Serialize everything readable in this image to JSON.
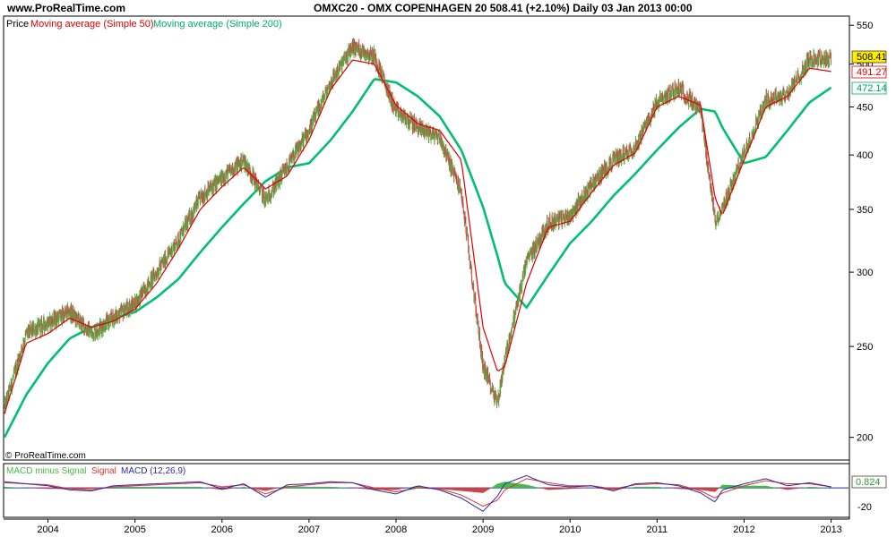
{
  "header": {
    "site": "www.ProRealTime.com",
    "title": "OMXC20 - OMX COPENHAGEN 20    508.41 (+2.10%)    Daily  03 Jan 2013 00:00"
  },
  "legend": {
    "price": "Price",
    "ma50": "Moving average (Simple 50)",
    "ma200": "Moving average (Simple 200)",
    "macd_hist": "MACD minus Signal",
    "macd_signal": "Signal",
    "macd_line": "MACD (12,26,9)"
  },
  "watermark": "© ProRealTime.com",
  "colors": {
    "price": "#44bb44",
    "price_alt": "#cc4444",
    "ma50": "#dd0000",
    "ma200": "#00c070",
    "macd_line": "#2a2aa0",
    "signal": "#dd3333",
    "last_price_bg": "#ffee00"
  },
  "price_labels": {
    "last": "508.41",
    "ma50": "491.27",
    "ma200": "472.14"
  },
  "macd_labels": {
    "last": "0.824",
    "tick_neg20": "-20"
  },
  "chart_data": [
    {
      "type": "line",
      "title": "OMXC20 - OMX COPENHAGEN 20",
      "y_ticks": [
        "550",
        "500",
        "450",
        "400",
        "350",
        "300",
        "250",
        "200"
      ],
      "x_ticks": [
        "2004",
        "2005",
        "2006",
        "2007",
        "2008",
        "2009",
        "2010",
        "2011",
        "2012",
        "2013"
      ],
      "ylim": [
        190,
        560
      ],
      "y_scale": "log",
      "series": [
        {
          "name": "Price",
          "x": [
            "2003-07",
            "2003-10",
            "2004-01",
            "2004-04",
            "2004-07",
            "2004-10",
            "2005-01",
            "2005-04",
            "2005-07",
            "2005-10",
            "2006-01",
            "2006-04",
            "2006-07",
            "2006-10",
            "2007-01",
            "2007-04",
            "2007-07",
            "2007-10",
            "2008-01",
            "2008-04",
            "2008-07",
            "2008-10",
            "2009-01",
            "2009-03",
            "2009-04",
            "2009-07",
            "2009-10",
            "2010-01",
            "2010-04",
            "2010-07",
            "2010-10",
            "2011-01",
            "2011-04",
            "2011-07",
            "2011-09",
            "2011-10",
            "2012-01",
            "2012-04",
            "2012-07",
            "2012-10",
            "2013-01"
          ],
          "values": [
            215,
            258,
            265,
            272,
            258,
            268,
            278,
            300,
            325,
            360,
            378,
            395,
            358,
            388,
            425,
            478,
            522,
            510,
            445,
            428,
            418,
            365,
            238,
            218,
            242,
            308,
            338,
            345,
            372,
            395,
            408,
            455,
            472,
            445,
            340,
            350,
            402,
            458,
            465,
            505,
            508
          ]
        },
        {
          "name": "Moving average (Simple 50)",
          "x": [
            "2003-07",
            "2003-10",
            "2004-01",
            "2004-04",
            "2004-07",
            "2004-10",
            "2005-01",
            "2005-04",
            "2005-07",
            "2005-10",
            "2006-01",
            "2006-04",
            "2006-07",
            "2006-10",
            "2007-01",
            "2007-04",
            "2007-07",
            "2007-10",
            "2008-01",
            "2008-04",
            "2008-07",
            "2008-10",
            "2009-01",
            "2009-03",
            "2009-04",
            "2009-07",
            "2009-10",
            "2010-01",
            "2010-04",
            "2010-07",
            "2010-10",
            "2011-01",
            "2011-04",
            "2011-07",
            "2011-09",
            "2011-10",
            "2012-01",
            "2012-04",
            "2012-07",
            "2012-10",
            "2013-01"
          ],
          "values": [
            212,
            252,
            258,
            268,
            262,
            266,
            274,
            292,
            318,
            350,
            370,
            388,
            368,
            380,
            415,
            470,
            505,
            500,
            452,
            432,
            425,
            395,
            262,
            235,
            238,
            292,
            335,
            340,
            365,
            390,
            402,
            450,
            462,
            452,
            360,
            345,
            395,
            450,
            462,
            495,
            491
          ]
        },
        {
          "name": "Moving average (Simple 200)",
          "x": [
            "2003-07",
            "2003-10",
            "2004-01",
            "2004-04",
            "2004-07",
            "2004-10",
            "2005-01",
            "2005-04",
            "2005-07",
            "2005-10",
            "2006-01",
            "2006-04",
            "2006-07",
            "2006-10",
            "2007-01",
            "2007-04",
            "2007-07",
            "2007-10",
            "2008-01",
            "2008-04",
            "2008-07",
            "2008-10",
            "2009-01",
            "2009-03",
            "2009-04",
            "2009-07",
            "2009-10",
            "2010-01",
            "2010-04",
            "2010-07",
            "2010-10",
            "2011-01",
            "2011-04",
            "2011-07",
            "2011-09",
            "2011-10",
            "2012-01",
            "2012-04",
            "2012-07",
            "2012-10",
            "2013-01"
          ],
          "values": [
            200,
            222,
            240,
            255,
            262,
            268,
            272,
            282,
            295,
            315,
            335,
            355,
            375,
            388,
            392,
            415,
            445,
            482,
            478,
            462,
            440,
            405,
            352,
            312,
            292,
            275,
            298,
            322,
            340,
            362,
            382,
            405,
            428,
            448,
            445,
            428,
            392,
            398,
            425,
            455,
            472
          ]
        }
      ]
    },
    {
      "type": "line",
      "title": "MACD (12,26,9)",
      "y_ticks": [
        "-20"
      ],
      "ylim": [
        -28,
        22
      ],
      "series": [
        {
          "name": "MACD (12,26,9)",
          "x": [
            "2003-07",
            "2003-10",
            "2004-01",
            "2004-04",
            "2004-07",
            "2004-10",
            "2005-01",
            "2005-04",
            "2005-07",
            "2005-10",
            "2006-01",
            "2006-04",
            "2006-07",
            "2006-10",
            "2007-01",
            "2007-04",
            "2007-07",
            "2007-10",
            "2008-01",
            "2008-04",
            "2008-07",
            "2008-10",
            "2009-01",
            "2009-03",
            "2009-04",
            "2009-07",
            "2009-10",
            "2010-01",
            "2010-04",
            "2010-07",
            "2010-10",
            "2011-01",
            "2011-04",
            "2011-07",
            "2011-09",
            "2011-10",
            "2012-01",
            "2012-04",
            "2012-07",
            "2012-10",
            "2013-01"
          ],
          "values": [
            6,
            4,
            2,
            -2,
            -3,
            2,
            3,
            4,
            5,
            6,
            -1,
            4,
            -9,
            3,
            4,
            6,
            5,
            -2,
            -6,
            2,
            -2,
            -10,
            -23,
            -8,
            4,
            12,
            3,
            1,
            2,
            -3,
            4,
            5,
            2,
            -5,
            -14,
            -2,
            4,
            9,
            2,
            5,
            1
          ]
        },
        {
          "name": "Signal",
          "x": [
            "2003-07",
            "2003-10",
            "2004-01",
            "2004-04",
            "2004-07",
            "2004-10",
            "2005-01",
            "2005-04",
            "2005-07",
            "2005-10",
            "2006-01",
            "2006-04",
            "2006-07",
            "2006-10",
            "2007-01",
            "2007-04",
            "2007-07",
            "2007-10",
            "2008-01",
            "2008-04",
            "2008-07",
            "2008-10",
            "2009-01",
            "2009-03",
            "2009-04",
            "2009-07",
            "2009-10",
            "2010-01",
            "2010-04",
            "2010-07",
            "2010-10",
            "2011-01",
            "2011-04",
            "2011-07",
            "2011-09",
            "2011-10",
            "2012-01",
            "2012-04",
            "2012-07",
            "2012-10",
            "2013-01"
          ],
          "values": [
            5,
            4,
            3,
            -1,
            -2,
            1,
            2,
            3,
            4,
            5,
            1,
            3,
            -6,
            1,
            3,
            5,
            5,
            0,
            -4,
            0,
            -1,
            -7,
            -18,
            -12,
            -2,
            9,
            5,
            2,
            2,
            -1,
            3,
            4,
            3,
            -3,
            -10,
            -5,
            2,
            7,
            4,
            4,
            1
          ]
        },
        {
          "name": "MACD minus Signal",
          "x": [
            "2003-07",
            "2003-10",
            "2004-01",
            "2004-04",
            "2004-07",
            "2004-10",
            "2005-01",
            "2005-04",
            "2005-07",
            "2005-10",
            "2006-01",
            "2006-04",
            "2006-07",
            "2006-10",
            "2007-01",
            "2007-04",
            "2007-07",
            "2007-10",
            "2008-01",
            "2008-04",
            "2008-07",
            "2008-10",
            "2009-01",
            "2009-03",
            "2009-04",
            "2009-07",
            "2009-10",
            "2010-01",
            "2010-04",
            "2010-07",
            "2010-10",
            "2011-01",
            "2011-04",
            "2011-07",
            "2011-09",
            "2011-10",
            "2012-01",
            "2012-04",
            "2012-07",
            "2012-10",
            "2013-01"
          ],
          "values": [
            1,
            0,
            -1,
            -1,
            -1,
            1,
            1,
            1,
            1,
            1,
            -2,
            1,
            -3,
            2,
            1,
            1,
            0,
            -2,
            -2,
            2,
            -1,
            -3,
            -5,
            4,
            6,
            3,
            -2,
            -1,
            0,
            -2,
            1,
            1,
            -1,
            -2,
            -4,
            3,
            2,
            2,
            -2,
            1,
            0
          ]
        }
      ]
    }
  ]
}
